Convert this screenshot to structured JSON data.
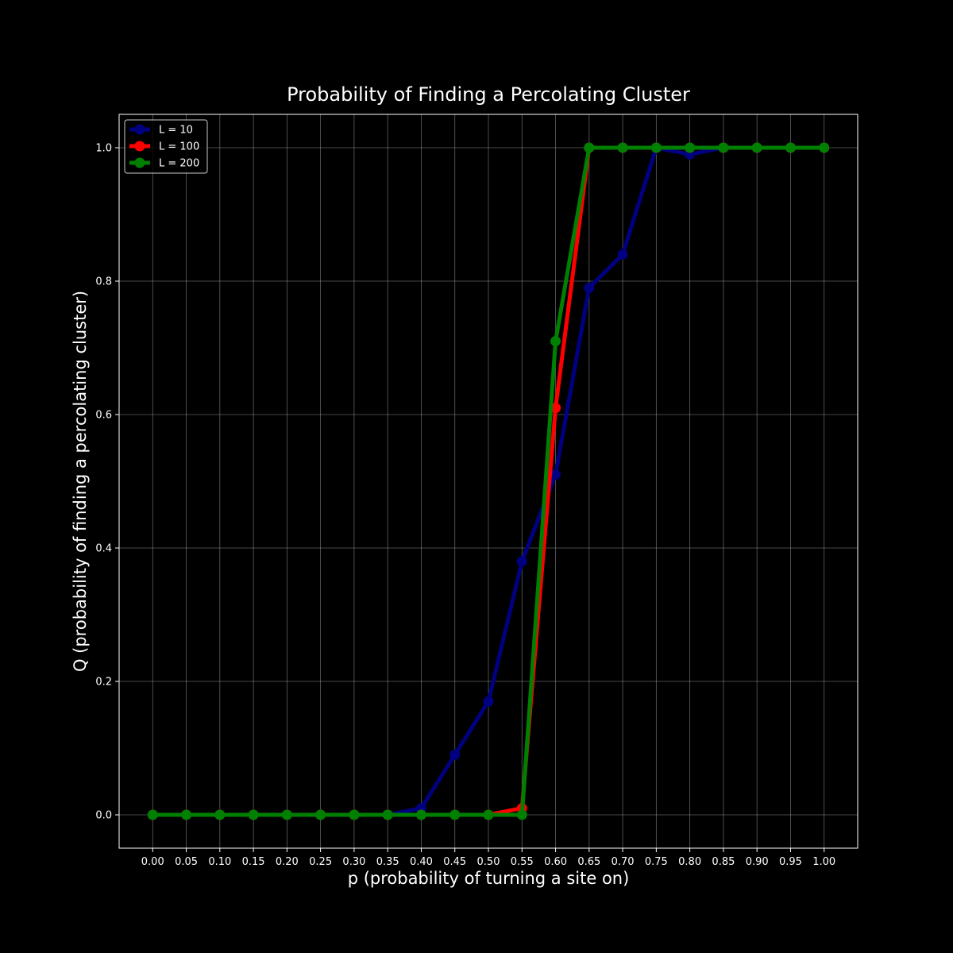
{
  "chart_data": {
    "type": "line",
    "title": "Probability of Finding a Percolating Cluster",
    "xlabel": "p (probability of turning a site on)",
    "ylabel": "Q (probability of finding a percolating cluster)",
    "x": [
      0.0,
      0.05,
      0.1,
      0.15,
      0.2,
      0.25,
      0.3,
      0.35,
      0.4,
      0.45,
      0.5,
      0.55,
      0.6,
      0.65,
      0.7,
      0.75,
      0.8,
      0.85,
      0.9,
      0.95,
      1.0
    ],
    "x_tick_labels": [
      "0.00",
      "0.05",
      "0.10",
      "0.15",
      "0.20",
      "0.25",
      "0.30",
      "0.35",
      "0.40",
      "0.45",
      "0.50",
      "0.55",
      "0.60",
      "0.65",
      "0.70",
      "0.75",
      "0.80",
      "0.85",
      "0.90",
      "0.95",
      "1.00"
    ],
    "y_ticks": [
      0.0,
      0.2,
      0.4,
      0.6,
      0.8,
      1.0
    ],
    "y_tick_labels": [
      "0.0",
      "0.2",
      "0.4",
      "0.6",
      "0.8",
      "1.0"
    ],
    "xlim": [
      -0.05,
      1.05
    ],
    "ylim": [
      -0.05,
      1.05
    ],
    "grid": true,
    "legend_position": "top-left",
    "series": [
      {
        "name": "L = 10",
        "color": "#000080",
        "values": [
          0,
          0,
          0,
          0,
          0,
          0,
          0,
          0,
          0.01,
          0.09,
          0.17,
          0.38,
          0.51,
          0.79,
          0.84,
          1.0,
          0.99,
          1.0,
          1.0,
          1.0,
          1.0
        ]
      },
      {
        "name": "L = 100",
        "color": "#ff0000",
        "values": [
          0,
          0,
          0,
          0,
          0,
          0,
          0,
          0,
          0,
          0,
          0,
          0.01,
          0.61,
          1.0,
          1.0,
          1.0,
          1.0,
          1.0,
          1.0,
          1.0,
          1.0
        ]
      },
      {
        "name": "L = 200",
        "color": "#008000",
        "values": [
          0,
          0,
          0,
          0,
          0,
          0,
          0,
          0,
          0,
          0,
          0,
          0,
          0.71,
          1.0,
          1.0,
          1.0,
          1.0,
          1.0,
          1.0,
          1.0,
          1.0
        ]
      }
    ]
  }
}
